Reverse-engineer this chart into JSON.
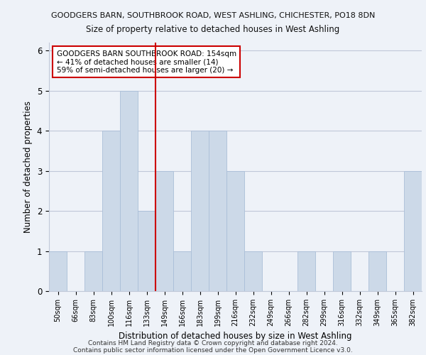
{
  "title1": "GOODGERS BARN, SOUTHBROOK ROAD, WEST ASHLING, CHICHESTER, PO18 8DN",
  "title2": "Size of property relative to detached houses in West Ashling",
  "xlabel": "Distribution of detached houses by size in West Ashling",
  "ylabel": "Number of detached properties",
  "categories": [
    "50sqm",
    "66sqm",
    "83sqm",
    "100sqm",
    "116sqm",
    "133sqm",
    "149sqm",
    "166sqm",
    "183sqm",
    "199sqm",
    "216sqm",
    "232sqm",
    "249sqm",
    "266sqm",
    "282sqm",
    "299sqm",
    "316sqm",
    "332sqm",
    "349sqm",
    "365sqm",
    "382sqm"
  ],
  "values": [
    1,
    0,
    1,
    4,
    5,
    2,
    3,
    1,
    4,
    4,
    3,
    1,
    0,
    0,
    1,
    0,
    1,
    0,
    1,
    0,
    3
  ],
  "bar_color": "#ccd9e8",
  "bar_edgecolor": "#aabfd8",
  "vline_x": 5.5,
  "vline_color": "#cc0000",
  "ylim": [
    0,
    6.2
  ],
  "yticks": [
    0,
    1,
    2,
    3,
    4,
    5,
    6
  ],
  "annotation_line1": "GOODGERS BARN SOUTHBROOK ROAD: 154sqm",
  "annotation_line2": "← 41% of detached houses are smaller (14)",
  "annotation_line3": "59% of semi-detached houses are larger (20) →",
  "annotation_box_color": "#ffffff",
  "annotation_border_color": "#cc0000",
  "footer1": "Contains HM Land Registry data © Crown copyright and database right 2024.",
  "footer2": "Contains public sector information licensed under the Open Government Licence v3.0.",
  "bg_color": "#eef2f8",
  "grid_color": "#c0c8d8"
}
